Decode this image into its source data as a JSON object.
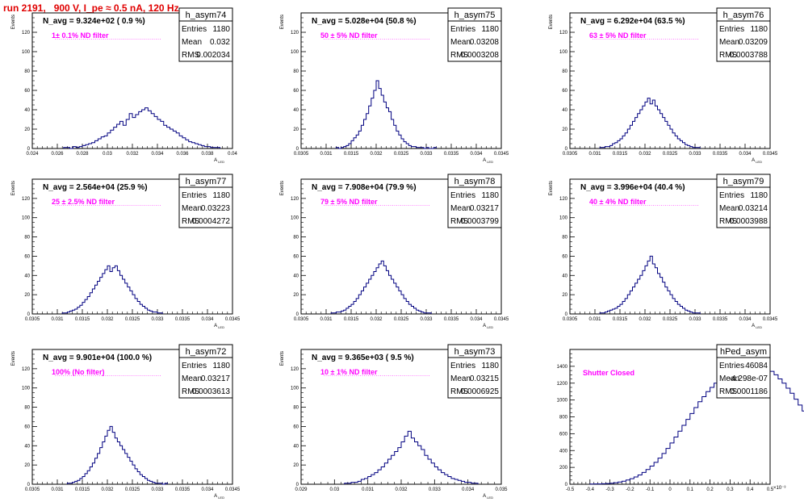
{
  "run_title": "run 2191,   900 V, I_pe ≈ 0.5 nA, 120 Hz",
  "colors": {
    "title": "#e00000",
    "histogram": "#000080",
    "annotation": "#ff00ff",
    "frame": "#000000"
  },
  "chart_data": [
    {
      "type": "bar",
      "name": "h_asym74",
      "ylabel": "Events",
      "xlabel": "A_{LED}",
      "xlim": [
        0.024,
        0.04
      ],
      "ylim": [
        0,
        140
      ],
      "xticks": [
        0.024,
        0.026,
        0.028,
        0.03,
        0.032,
        0.034,
        0.036,
        0.038,
        0.04
      ],
      "xtick_labels": [
        "0.024",
        "0.026",
        "0.028",
        "0.03",
        "0.032",
        "0.034",
        "0.036",
        "0.038",
        "0.04"
      ],
      "yticks": [
        0,
        20,
        40,
        60,
        80,
        100,
        120
      ],
      "n_avg": "N_avg = 9.324e+02 ( 0.9 %)",
      "filter": "1± 0.1% ND filter",
      "stats": {
        "entries": "1180",
        "mean": "0.032",
        "rms": "0.002034"
      },
      "bins": {
        "start": 0.0265,
        "width": 0.00025,
        "values": [
          1,
          1,
          0,
          2,
          1,
          2,
          3,
          4,
          5,
          6,
          8,
          10,
          12,
          13,
          16,
          19,
          22,
          25,
          28,
          24,
          30,
          36,
          32,
          35,
          38,
          40,
          42,
          39,
          36,
          33,
          30,
          28,
          24,
          22,
          20,
          18,
          16,
          13,
          11,
          9,
          7,
          6,
          5,
          4,
          3,
          2,
          2,
          1,
          1,
          1
        ]
      }
    },
    {
      "type": "bar",
      "name": "h_asym75",
      "ylabel": "Events",
      "xlabel": "A_{LED}",
      "xlim": [
        0.0305,
        0.0345
      ],
      "ylim": [
        0,
        140
      ],
      "xticks": [
        0.0305,
        0.031,
        0.0315,
        0.032,
        0.0325,
        0.033,
        0.0335,
        0.034,
        0.0345
      ],
      "xtick_labels": [
        "0.0305",
        "0.031",
        "0.0315",
        "0.032",
        "0.0325",
        "0.033",
        "0.0335",
        "0.034",
        "0.0345"
      ],
      "yticks": [
        0,
        20,
        40,
        60,
        80,
        100,
        120
      ],
      "n_avg": "N_avg = 5.028e+04 (50.8 %)",
      "filter": "50 ± 5% ND filter",
      "stats": {
        "entries": "1180",
        "mean": "0.03208",
        "rms": "0.0003208"
      },
      "bins": {
        "start": 0.0312,
        "width": 5e-05,
        "values": [
          1,
          0,
          1,
          2,
          3,
          5,
          8,
          11,
          14,
          18,
          24,
          30,
          36,
          44,
          52,
          60,
          70,
          62,
          55,
          48,
          42,
          38,
          30,
          24,
          18,
          14,
          10,
          7,
          5,
          3,
          2,
          2,
          1,
          1,
          1,
          0,
          1,
          0,
          0,
          1
        ]
      }
    },
    {
      "type": "bar",
      "name": "h_asym76",
      "ylabel": "Events",
      "xlabel": "A_{LED}",
      "xlim": [
        0.0305,
        0.0345
      ],
      "ylim": [
        0,
        140
      ],
      "xticks": [
        0.0305,
        0.031,
        0.0315,
        0.032,
        0.0325,
        0.033,
        0.0335,
        0.034,
        0.0345
      ],
      "xtick_labels": [
        "0.0305",
        "0.031",
        "0.0315",
        "0.032",
        "0.0325",
        "0.033",
        "0.0335",
        "0.034",
        "0.0345"
      ],
      "yticks": [
        0,
        20,
        40,
        60,
        80,
        100,
        120
      ],
      "n_avg": "N_avg = 6.292e+04 (63.5 %)",
      "filter": "63 ± 5% ND filter",
      "stats": {
        "entries": "1180",
        "mean": "0.03209",
        "rms": "0.0003788"
      },
      "bins": {
        "start": 0.0311,
        "width": 5e-05,
        "values": [
          1,
          1,
          2,
          2,
          3,
          5,
          6,
          8,
          10,
          13,
          16,
          20,
          24,
          28,
          32,
          36,
          40,
          44,
          48,
          52,
          46,
          50,
          44,
          40,
          36,
          32,
          28,
          24,
          20,
          16,
          13,
          10,
          8,
          6,
          4,
          3,
          2,
          1,
          1,
          1
        ]
      }
    },
    {
      "type": "bar",
      "name": "h_asym77",
      "ylabel": "Events",
      "xlabel": "A_{LED}",
      "xlim": [
        0.0305,
        0.0345
      ],
      "ylim": [
        0,
        140
      ],
      "xticks": [
        0.0305,
        0.031,
        0.0315,
        0.032,
        0.0325,
        0.033,
        0.0335,
        0.034,
        0.0345
      ],
      "xtick_labels": [
        "0.0305",
        "0.031",
        "0.0315",
        "0.032",
        "0.0325",
        "0.033",
        "0.0335",
        "0.034",
        "0.0345"
      ],
      "yticks": [
        0,
        20,
        40,
        60,
        80,
        100,
        120
      ],
      "n_avg": "N_avg = 2.564e+04 (25.9 %)",
      "filter": "25 ± 2.5% ND filter",
      "stats": {
        "entries": "1180",
        "mean": "0.03223",
        "rms": "0.0004272"
      },
      "bins": {
        "start": 0.0311,
        "width": 5e-05,
        "values": [
          1,
          1,
          2,
          3,
          4,
          5,
          7,
          9,
          12,
          15,
          18,
          22,
          26,
          30,
          34,
          38,
          42,
          46,
          50,
          44,
          48,
          50,
          45,
          40,
          36,
          32,
          28,
          24,
          20,
          16,
          13,
          10,
          8,
          6,
          4,
          3,
          2,
          2,
          1,
          1
        ]
      }
    },
    {
      "type": "bar",
      "name": "h_asym78",
      "ylabel": "Events",
      "xlabel": "A_{LED}",
      "xlim": [
        0.0305,
        0.0345
      ],
      "ylim": [
        0,
        140
      ],
      "xticks": [
        0.0305,
        0.031,
        0.0315,
        0.032,
        0.0325,
        0.033,
        0.0335,
        0.034,
        0.0345
      ],
      "xtick_labels": [
        "0.0305",
        "0.031",
        "0.0315",
        "0.032",
        "0.0325",
        "0.033",
        "0.0335",
        "0.034",
        "0.0345"
      ],
      "yticks": [
        0,
        20,
        40,
        60,
        80,
        100,
        120
      ],
      "n_avg": "N_avg = 7.908e+04 (79.9 %)",
      "filter": "79 ± 5% ND filter",
      "stats": {
        "entries": "1180",
        "mean": "0.03217",
        "rms": "0.0003799"
      },
      "bins": {
        "start": 0.0311,
        "width": 5e-05,
        "values": [
          1,
          1,
          2,
          2,
          3,
          4,
          6,
          8,
          10,
          13,
          16,
          20,
          24,
          28,
          32,
          36,
          40,
          44,
          48,
          52,
          55,
          50,
          45,
          40,
          36,
          32,
          28,
          24,
          20,
          16,
          13,
          10,
          8,
          6,
          4,
          3,
          2,
          1,
          1,
          1
        ]
      }
    },
    {
      "type": "bar",
      "name": "h_asym79",
      "ylabel": "Events",
      "xlabel": "A_{LED}",
      "xlim": [
        0.0305,
        0.0345
      ],
      "ylim": [
        0,
        140
      ],
      "xticks": [
        0.0305,
        0.031,
        0.0315,
        0.032,
        0.0325,
        0.033,
        0.0335,
        0.034,
        0.0345
      ],
      "xtick_labels": [
        "0.0305",
        "0.031",
        "0.0315",
        "0.032",
        "0.0325",
        "0.033",
        "0.0335",
        "0.034",
        "0.0345"
      ],
      "yticks": [
        0,
        20,
        40,
        60,
        80,
        100,
        120
      ],
      "n_avg": "N_avg = 3.996e+04 (40.4 %)",
      "filter": "40 ± 4% ND filter",
      "stats": {
        "entries": "1180",
        "mean": "0.03214",
        "rms": "0.0003988"
      },
      "bins": {
        "start": 0.0311,
        "width": 5e-05,
        "values": [
          1,
          1,
          2,
          3,
          4,
          5,
          6,
          8,
          10,
          13,
          16,
          20,
          24,
          28,
          32,
          36,
          40,
          45,
          50,
          55,
          60,
          52,
          48,
          42,
          38,
          33,
          28,
          24,
          20,
          16,
          13,
          10,
          8,
          6,
          4,
          3,
          2,
          1,
          1,
          1
        ]
      }
    },
    {
      "type": "bar",
      "name": "h_asym72",
      "ylabel": "Events",
      "xlabel": "A_{LED}",
      "xlim": [
        0.0305,
        0.0345
      ],
      "ylim": [
        0,
        140
      ],
      "xticks": [
        0.0305,
        0.031,
        0.0315,
        0.032,
        0.0325,
        0.033,
        0.0335,
        0.034,
        0.0345
      ],
      "xtick_labels": [
        "0.0305",
        "0.031",
        "0.0315",
        "0.032",
        "0.0325",
        "0.033",
        "0.0335",
        "0.034",
        "0.0345"
      ],
      "yticks": [
        0,
        20,
        40,
        60,
        80,
        100,
        120
      ],
      "n_avg": "N_avg = 9.901e+04 (100.0 %)",
      "filter": "100% (No filter)",
      "stats": {
        "entries": "1180",
        "mean": "0.03217",
        "rms": "0.0003613"
      },
      "bins": {
        "start": 0.0312,
        "width": 5e-05,
        "values": [
          1,
          1,
          2,
          3,
          4,
          6,
          8,
          11,
          14,
          18,
          22,
          27,
          32,
          38,
          44,
          50,
          56,
          60,
          54,
          48,
          44,
          40,
          36,
          32,
          28,
          24,
          20,
          16,
          13,
          10,
          8,
          6,
          4,
          3,
          2,
          1,
          1,
          1,
          0,
          1
        ]
      }
    },
    {
      "type": "bar",
      "name": "h_asym73",
      "ylabel": "Events",
      "xlabel": "A_{LED}",
      "xlim": [
        0.029,
        0.035
      ],
      "ylim": [
        0,
        140
      ],
      "xticks": [
        0.029,
        0.03,
        0.031,
        0.032,
        0.033,
        0.034,
        0.035
      ],
      "xtick_labels": [
        "0.029",
        "0.03",
        "0.031",
        "0.032",
        "0.033",
        "0.034",
        "0.035"
      ],
      "yticks": [
        0,
        20,
        40,
        60,
        80,
        100,
        120
      ],
      "n_avg": "N_avg = 9.365e+03 ( 9.5 %)",
      "filter": "10 ± 1% ND filter",
      "stats": {
        "entries": "1180",
        "mean": "0.03215",
        "rms": "0.0006925"
      },
      "bins": {
        "start": 0.0303,
        "width": 0.0001,
        "values": [
          1,
          1,
          2,
          2,
          3,
          5,
          6,
          8,
          10,
          12,
          15,
          18,
          22,
          26,
          30,
          34,
          38,
          44,
          50,
          55,
          48,
          44,
          40,
          36,
          30,
          26,
          22,
          18,
          15,
          12,
          10,
          8,
          6,
          5,
          4,
          3,
          2,
          2,
          1,
          1
        ]
      }
    },
    {
      "type": "bar",
      "name": "hPed_asym",
      "ylabel": "",
      "xlabel": "",
      "xlim": [
        -0.5,
        0.5
      ],
      "ylim": [
        0,
        1600
      ],
      "x_exponent": "×10⁻³",
      "xticks": [
        -0.5,
        -0.4,
        -0.3,
        -0.2,
        -0.1,
        0,
        0.1,
        0.2,
        0.3,
        0.4,
        0.5
      ],
      "xtick_labels": [
        "-0.5",
        "-0.4",
        "-0.3",
        "-0.2",
        "-0.1",
        "0",
        "0.1",
        "0.2",
        "0.3",
        "0.4",
        "0.5"
      ],
      "yticks": [
        0,
        200,
        400,
        600,
        800,
        1000,
        1200,
        1400
      ],
      "n_avg": "",
      "filter": "Shutter Closed",
      "stats": {
        "entries": "46084",
        "mean": "-4.298e-07",
        "rms": "0.0001186"
      },
      "bins": {
        "start": -0.4,
        "width": 0.02,
        "values": [
          2,
          3,
          4,
          6,
          8,
          12,
          18,
          26,
          36,
          50,
          66,
          86,
          110,
          140,
          175,
          215,
          260,
          310,
          365,
          425,
          490,
          560,
          630,
          700,
          770,
          840,
          910,
          980,
          1040,
          1100,
          1150,
          1200,
          1240,
          1280,
          1310,
          1340,
          1360,
          1380,
          1400,
          1420,
          1430,
          1410,
          1420,
          1390,
          1370,
          1340,
          1300,
          1250,
          1200,
          1140,
          1080,
          1010,
          940,
          870,
          800,
          730,
          660,
          590,
          520,
          455,
          390,
          330,
          275,
          225,
          180,
          140,
          108,
          80,
          58,
          42,
          30,
          20,
          14,
          9,
          6,
          4,
          3,
          2,
          1,
          1
        ]
      }
    }
  ]
}
